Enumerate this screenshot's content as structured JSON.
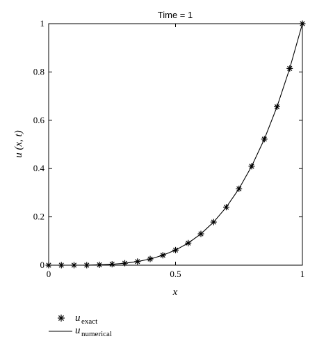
{
  "chart_data": {
    "type": "line",
    "title": "Time = 1",
    "xlabel": "x",
    "ylabel": "u (x, t)",
    "xlim": [
      0,
      1
    ],
    "ylim": [
      0,
      1
    ],
    "x_ticks": [
      "0",
      "0.5",
      "1"
    ],
    "y_ticks": [
      "0",
      "0.2",
      "0.4",
      "0.6",
      "0.8",
      "1"
    ],
    "grid": false,
    "legend_position": "bottom-left, outside plot",
    "series": [
      {
        "name": "u_exact",
        "legend_main": "u",
        "legend_sub": "exact",
        "marker": "asterisk",
        "line": "none",
        "x": [
          0,
          0.05,
          0.1,
          0.15,
          0.2,
          0.25,
          0.3,
          0.35,
          0.4,
          0.45,
          0.5,
          0.55,
          0.6,
          0.65,
          0.7,
          0.75,
          0.8,
          0.85,
          0.9,
          0.95,
          1.0
        ],
        "y": [
          0.0,
          0.0,
          0.0,
          0.0,
          0.0016,
          0.0039,
          0.0081,
          0.015,
          0.0256,
          0.041,
          0.0625,
          0.0915,
          0.1296,
          0.1785,
          0.2401,
          0.3164,
          0.4096,
          0.522,
          0.6561,
          0.8145,
          1.0
        ]
      },
      {
        "name": "u_numerical",
        "legend_main": "u",
        "legend_sub": "numerical",
        "marker": "none",
        "line": "solid",
        "x": [
          0,
          0.05,
          0.1,
          0.15,
          0.2,
          0.25,
          0.3,
          0.35,
          0.4,
          0.45,
          0.5,
          0.55,
          0.6,
          0.65,
          0.7,
          0.75,
          0.8,
          0.85,
          0.9,
          0.95,
          1.0
        ],
        "y": [
          0.0,
          0.0,
          0.0,
          0.0,
          0.0016,
          0.0039,
          0.0081,
          0.015,
          0.0256,
          0.041,
          0.0625,
          0.0915,
          0.1296,
          0.1785,
          0.2401,
          0.3164,
          0.4096,
          0.522,
          0.6561,
          0.8145,
          1.0
        ]
      }
    ]
  }
}
